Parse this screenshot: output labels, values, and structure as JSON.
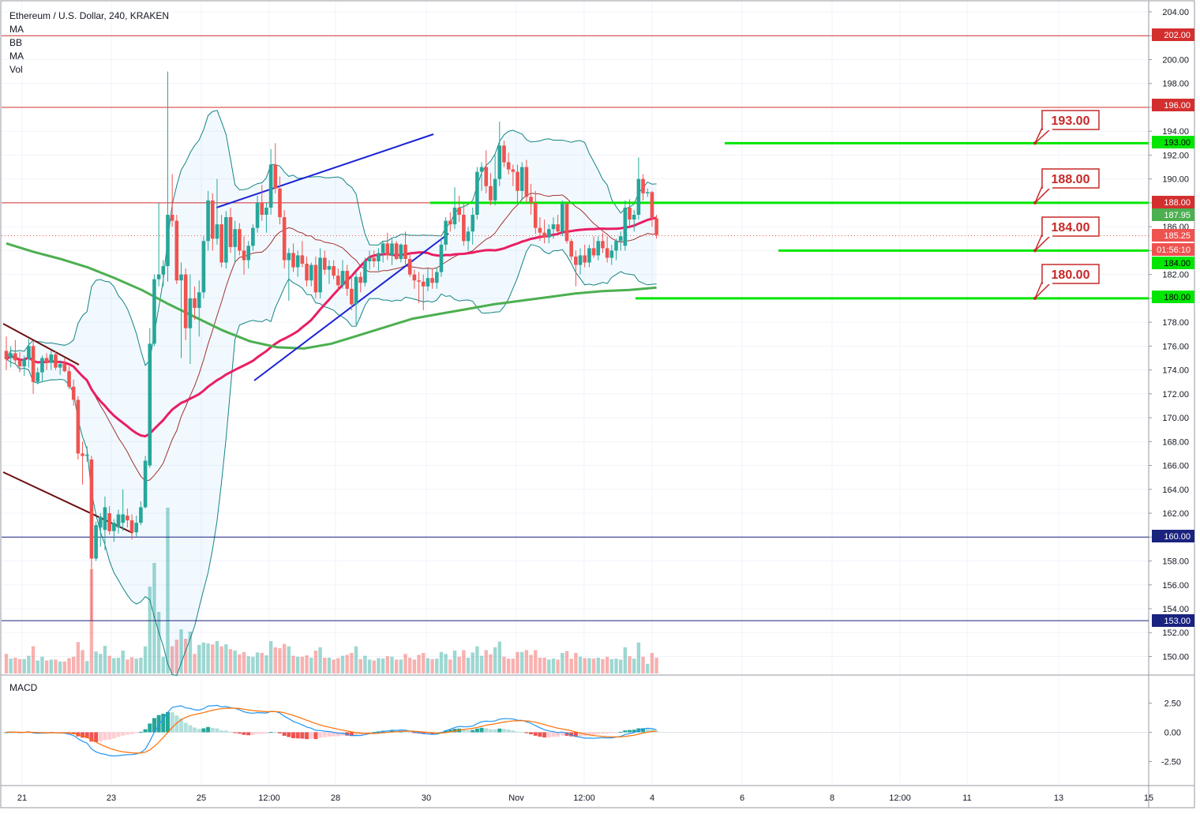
{
  "chart_data": {
    "type": "candlestick",
    "title": "Ethereum / U.S. Dollar, 240, KRAKEN",
    "indicators": [
      "MA",
      "BB",
      "MA",
      "Vol"
    ],
    "macd_label": "MACD",
    "y_range": [
      148,
      205
    ],
    "y_ticks": [
      "204.00",
      "202.00",
      "200.00",
      "198.00",
      "196.00",
      "194.00",
      "192.00",
      "190.00",
      "188.00",
      "186.00",
      "184.00",
      "182.00",
      "180.00",
      "178.00",
      "176.00",
      "174.00",
      "172.00",
      "170.00",
      "168.00",
      "166.00",
      "164.00",
      "162.00",
      "160.00",
      "158.00",
      "156.00",
      "154.00",
      "152.00",
      "150.00"
    ],
    "macd_ticks": [
      "2.50",
      "0.00",
      "-2.50"
    ],
    "x_labels": [
      "21",
      "23",
      "25",
      "12:00",
      "28",
      "30",
      "Nov",
      "12:00",
      "4",
      "6",
      "8",
      "12:00",
      "11",
      "13",
      "15"
    ],
    "price_tags": [
      {
        "label": "202.00",
        "value": 202,
        "kind": "red-line"
      },
      {
        "label": "196.00",
        "value": 196,
        "kind": "red-line"
      },
      {
        "label": "193.00",
        "value": 193,
        "kind": "green"
      },
      {
        "label": "188.00",
        "value": 188,
        "kind": "red-line"
      },
      {
        "label": "187.95",
        "value": 187.95,
        "kind": "green-light"
      },
      {
        "label": "185.25",
        "value": 185.25,
        "kind": "current"
      },
      {
        "label": "01:56:10",
        "value": 183.7,
        "kind": "countdown"
      },
      {
        "label": "184.00",
        "value": 184,
        "kind": "green"
      },
      {
        "label": "180.00",
        "value": 180,
        "kind": "green"
      },
      {
        "label": "160.00",
        "value": 160,
        "kind": "blue-line"
      },
      {
        "label": "153.00",
        "value": 153,
        "kind": "blue-line"
      }
    ],
    "callouts": [
      "193.00",
      "188.00",
      "184.00",
      "180.00"
    ],
    "horizontal_levels": {
      "red": [
        202,
        196,
        188
      ],
      "navy": [
        160,
        153
      ],
      "green": [
        193,
        188,
        184,
        180
      ]
    },
    "candles": [
      {
        "o": 175.6,
        "h": 176.8,
        "l": 174.0,
        "c": 174.9
      },
      {
        "o": 175.0,
        "h": 176.0,
        "l": 174.2,
        "c": 175.4
      },
      {
        "o": 175.4,
        "h": 176.5,
        "l": 174.5,
        "c": 174.8
      },
      {
        "o": 174.8,
        "h": 175.5,
        "l": 173.8,
        "c": 174.3
      },
      {
        "o": 174.3,
        "h": 175.2,
        "l": 173.5,
        "c": 174.9
      },
      {
        "o": 174.9,
        "h": 176.6,
        "l": 174.2,
        "c": 176.0
      },
      {
        "o": 176.0,
        "h": 176.4,
        "l": 172.0,
        "c": 173.0
      },
      {
        "o": 173.0,
        "h": 174.2,
        "l": 172.8,
        "c": 173.8
      },
      {
        "o": 173.8,
        "h": 175.2,
        "l": 173.0,
        "c": 175.0
      },
      {
        "o": 175.0,
        "h": 175.4,
        "l": 174.0,
        "c": 174.6
      },
      {
        "o": 174.6,
        "h": 175.6,
        "l": 174.0,
        "c": 175.3
      },
      {
        "o": 175.3,
        "h": 175.6,
        "l": 174.0,
        "c": 174.2
      },
      {
        "o": 174.2,
        "h": 174.8,
        "l": 173.6,
        "c": 174.5
      },
      {
        "o": 174.5,
        "h": 175.0,
        "l": 173.8,
        "c": 173.9
      },
      {
        "o": 173.9,
        "h": 174.3,
        "l": 172.4,
        "c": 172.6
      },
      {
        "o": 172.6,
        "h": 173.2,
        "l": 171.0,
        "c": 171.5
      },
      {
        "o": 171.5,
        "h": 171.8,
        "l": 166.5,
        "c": 167.0
      },
      {
        "o": 167.0,
        "h": 168.0,
        "l": 164.4,
        "c": 166.8
      },
      {
        "o": 166.8,
        "h": 167.6,
        "l": 166.3,
        "c": 166.9
      },
      {
        "o": 166.5,
        "h": 166.8,
        "l": 153.0,
        "c": 158.2
      },
      {
        "o": 158.2,
        "h": 161.3,
        "l": 158.0,
        "c": 161.0
      },
      {
        "o": 160.8,
        "h": 162.0,
        "l": 159.2,
        "c": 161.7
      },
      {
        "o": 160.6,
        "h": 163.4,
        "l": 158.9,
        "c": 162.5
      },
      {
        "o": 162.0,
        "h": 162.6,
        "l": 160.2,
        "c": 160.5
      },
      {
        "o": 160.5,
        "h": 161.5,
        "l": 159.6,
        "c": 161.2
      },
      {
        "o": 160.8,
        "h": 162.3,
        "l": 160.3,
        "c": 161.9
      },
      {
        "o": 161.2,
        "h": 164.0,
        "l": 160.5,
        "c": 161.9
      },
      {
        "o": 161.8,
        "h": 162.4,
        "l": 160.8,
        "c": 161.4
      },
      {
        "o": 161.4,
        "h": 161.9,
        "l": 159.8,
        "c": 160.4
      },
      {
        "o": 160.4,
        "h": 161.8,
        "l": 160.0,
        "c": 161.2
      },
      {
        "o": 161.2,
        "h": 163.0,
        "l": 161.0,
        "c": 162.5
      },
      {
        "o": 162.5,
        "h": 166.8,
        "l": 162.4,
        "c": 166.4
      },
      {
        "o": 166.0,
        "h": 177.5,
        "l": 165.8,
        "c": 176.2
      },
      {
        "o": 176.2,
        "h": 182.0,
        "l": 176.0,
        "c": 181.6
      },
      {
        "o": 181.6,
        "h": 188.0,
        "l": 181.0,
        "c": 182.0
      },
      {
        "o": 182.0,
        "h": 183.2,
        "l": 181.0,
        "c": 182.7
      },
      {
        "o": 182.7,
        "h": 199.0,
        "l": 181.4,
        "c": 187.0
      },
      {
        "o": 187.0,
        "h": 190.4,
        "l": 186.0,
        "c": 186.5
      },
      {
        "o": 186.5,
        "h": 187.0,
        "l": 181.2,
        "c": 181.5
      },
      {
        "o": 181.5,
        "h": 183.0,
        "l": 175.0,
        "c": 182.0
      },
      {
        "o": 182.0,
        "h": 182.5,
        "l": 176.5,
        "c": 177.5
      },
      {
        "o": 177.5,
        "h": 182.0,
        "l": 174.5,
        "c": 180.0
      },
      {
        "o": 180.0,
        "h": 181.0,
        "l": 178.2,
        "c": 179.2
      },
      {
        "o": 179.2,
        "h": 181.5,
        "l": 176.8,
        "c": 180.5
      },
      {
        "o": 180.5,
        "h": 185.2,
        "l": 180.0,
        "c": 184.8
      },
      {
        "o": 184.8,
        "h": 189.0,
        "l": 184.0,
        "c": 188.2
      },
      {
        "o": 188.2,
        "h": 188.8,
        "l": 184.0,
        "c": 185.0
      },
      {
        "o": 185.0,
        "h": 190.0,
        "l": 184.5,
        "c": 186.2
      },
      {
        "o": 186.2,
        "h": 187.0,
        "l": 182.6,
        "c": 183.0
      },
      {
        "o": 183.0,
        "h": 187.3,
        "l": 182.5,
        "c": 186.8
      },
      {
        "o": 186.8,
        "h": 187.6,
        "l": 183.8,
        "c": 184.3
      },
      {
        "o": 184.3,
        "h": 186.5,
        "l": 183.0,
        "c": 185.8
      },
      {
        "o": 185.8,
        "h": 186.3,
        "l": 183.6,
        "c": 184.0
      },
      {
        "o": 184.0,
        "h": 185.2,
        "l": 182.0,
        "c": 183.2
      },
      {
        "o": 183.2,
        "h": 184.8,
        "l": 182.5,
        "c": 184.4
      },
      {
        "o": 184.4,
        "h": 186.2,
        "l": 184.0,
        "c": 185.9
      },
      {
        "o": 185.9,
        "h": 188.6,
        "l": 185.5,
        "c": 188.0
      },
      {
        "o": 188.0,
        "h": 189.5,
        "l": 186.5,
        "c": 187.0
      },
      {
        "o": 187.0,
        "h": 188.0,
        "l": 185.5,
        "c": 187.6
      },
      {
        "o": 187.6,
        "h": 192.5,
        "l": 187.0,
        "c": 191.2
      },
      {
        "o": 191.2,
        "h": 193.0,
        "l": 188.8,
        "c": 189.2
      },
      {
        "o": 189.2,
        "h": 190.2,
        "l": 186.2,
        "c": 186.8
      },
      {
        "o": 186.8,
        "h": 187.4,
        "l": 182.5,
        "c": 183.2
      },
      {
        "o": 183.2,
        "h": 184.2,
        "l": 179.8,
        "c": 183.8
      },
      {
        "o": 183.8,
        "h": 184.6,
        "l": 182.2,
        "c": 182.6
      },
      {
        "o": 182.6,
        "h": 184.0,
        "l": 181.8,
        "c": 183.6
      },
      {
        "o": 183.6,
        "h": 184.8,
        "l": 182.6,
        "c": 182.9
      },
      {
        "o": 182.9,
        "h": 183.5,
        "l": 181.0,
        "c": 181.5
      },
      {
        "o": 181.5,
        "h": 183.0,
        "l": 181.0,
        "c": 182.8
      },
      {
        "o": 182.8,
        "h": 183.5,
        "l": 180.0,
        "c": 180.5
      },
      {
        "o": 180.5,
        "h": 184.2,
        "l": 180.0,
        "c": 183.4
      },
      {
        "o": 183.4,
        "h": 184.0,
        "l": 182.0,
        "c": 182.4
      },
      {
        "o": 182.4,
        "h": 183.2,
        "l": 181.2,
        "c": 182.7
      },
      {
        "o": 182.7,
        "h": 183.2,
        "l": 181.6,
        "c": 181.9
      },
      {
        "o": 181.9,
        "h": 182.5,
        "l": 180.6,
        "c": 181.1
      },
      {
        "o": 181.1,
        "h": 183.2,
        "l": 180.8,
        "c": 182.3
      },
      {
        "o": 182.3,
        "h": 182.8,
        "l": 180.2,
        "c": 180.8
      },
      {
        "o": 180.8,
        "h": 182.0,
        "l": 179.0,
        "c": 179.5
      },
      {
        "o": 179.5,
        "h": 182.2,
        "l": 177.8,
        "c": 181.8
      },
      {
        "o": 181.8,
        "h": 182.2,
        "l": 180.5,
        "c": 181.3
      },
      {
        "o": 181.3,
        "h": 183.4,
        "l": 181.0,
        "c": 183.1
      },
      {
        "o": 183.1,
        "h": 184.0,
        "l": 182.4,
        "c": 183.4
      },
      {
        "o": 183.4,
        "h": 184.0,
        "l": 182.6,
        "c": 183.1
      },
      {
        "o": 183.1,
        "h": 184.2,
        "l": 182.3,
        "c": 183.8
      },
      {
        "o": 183.8,
        "h": 184.8,
        "l": 183.0,
        "c": 184.6
      },
      {
        "o": 184.6,
        "h": 185.5,
        "l": 183.2,
        "c": 183.6
      },
      {
        "o": 183.6,
        "h": 185.0,
        "l": 182.8,
        "c": 184.6
      },
      {
        "o": 184.6,
        "h": 184.8,
        "l": 183.2,
        "c": 183.3
      },
      {
        "o": 183.3,
        "h": 184.6,
        "l": 183.0,
        "c": 184.5
      },
      {
        "o": 184.5,
        "h": 185.6,
        "l": 182.8,
        "c": 183.3
      },
      {
        "o": 183.3,
        "h": 183.8,
        "l": 181.8,
        "c": 182.0
      },
      {
        "o": 182.0,
        "h": 182.4,
        "l": 180.8,
        "c": 181.5
      },
      {
        "o": 181.5,
        "h": 182.2,
        "l": 179.6,
        "c": 181.4
      },
      {
        "o": 181.4,
        "h": 182.0,
        "l": 179.0,
        "c": 181.0
      },
      {
        "o": 181.0,
        "h": 182.5,
        "l": 180.6,
        "c": 181.7
      },
      {
        "o": 181.7,
        "h": 182.5,
        "l": 180.8,
        "c": 181.3
      },
      {
        "o": 181.3,
        "h": 182.6,
        "l": 180.8,
        "c": 182.2
      },
      {
        "o": 182.2,
        "h": 185.0,
        "l": 181.8,
        "c": 184.5
      },
      {
        "o": 184.5,
        "h": 186.8,
        "l": 184.0,
        "c": 186.5
      },
      {
        "o": 186.5,
        "h": 187.2,
        "l": 185.6,
        "c": 186.2
      },
      {
        "o": 186.2,
        "h": 189.3,
        "l": 185.8,
        "c": 187.6
      },
      {
        "o": 187.6,
        "h": 188.6,
        "l": 186.4,
        "c": 187.0
      },
      {
        "o": 187.0,
        "h": 188.0,
        "l": 184.4,
        "c": 184.8
      },
      {
        "o": 184.8,
        "h": 186.0,
        "l": 184.0,
        "c": 185.6
      },
      {
        "o": 185.6,
        "h": 187.6,
        "l": 184.5,
        "c": 187.0
      },
      {
        "o": 187.0,
        "h": 191.0,
        "l": 186.6,
        "c": 190.6
      },
      {
        "o": 190.6,
        "h": 191.4,
        "l": 189.0,
        "c": 191.0
      },
      {
        "o": 191.0,
        "h": 192.4,
        "l": 188.8,
        "c": 189.4
      },
      {
        "o": 189.4,
        "h": 190.5,
        "l": 187.8,
        "c": 188.2
      },
      {
        "o": 188.2,
        "h": 192.0,
        "l": 187.8,
        "c": 190.0
      },
      {
        "o": 190.0,
        "h": 194.8,
        "l": 189.4,
        "c": 192.8
      },
      {
        "o": 192.8,
        "h": 193.2,
        "l": 191.0,
        "c": 191.4
      },
      {
        "o": 191.4,
        "h": 192.2,
        "l": 190.4,
        "c": 190.8
      },
      {
        "o": 190.8,
        "h": 191.2,
        "l": 189.4,
        "c": 190.6
      },
      {
        "o": 190.6,
        "h": 191.2,
        "l": 188.0,
        "c": 189.0
      },
      {
        "o": 189.0,
        "h": 191.4,
        "l": 188.2,
        "c": 191.0
      },
      {
        "o": 191.0,
        "h": 191.6,
        "l": 188.0,
        "c": 188.5
      },
      {
        "o": 188.5,
        "h": 189.6,
        "l": 187.0,
        "c": 188.0
      },
      {
        "o": 188.0,
        "h": 189.0,
        "l": 185.4,
        "c": 185.9
      },
      {
        "o": 185.9,
        "h": 186.8,
        "l": 184.8,
        "c": 185.5
      },
      {
        "o": 185.5,
        "h": 186.6,
        "l": 184.6,
        "c": 185.1
      },
      {
        "o": 185.1,
        "h": 186.2,
        "l": 184.6,
        "c": 185.8
      },
      {
        "o": 185.8,
        "h": 186.8,
        "l": 185.0,
        "c": 186.2
      },
      {
        "o": 186.2,
        "h": 187.0,
        "l": 185.4,
        "c": 185.6
      },
      {
        "o": 185.6,
        "h": 188.2,
        "l": 185.2,
        "c": 187.9
      },
      {
        "o": 187.9,
        "h": 188.0,
        "l": 184.6,
        "c": 184.8
      },
      {
        "o": 184.8,
        "h": 185.0,
        "l": 183.2,
        "c": 183.5
      },
      {
        "o": 183.5,
        "h": 184.0,
        "l": 181.0,
        "c": 182.8
      },
      {
        "o": 182.8,
        "h": 184.2,
        "l": 182.0,
        "c": 183.6
      },
      {
        "o": 183.6,
        "h": 184.5,
        "l": 182.6,
        "c": 183.0
      },
      {
        "o": 183.0,
        "h": 184.5,
        "l": 182.6,
        "c": 184.2
      },
      {
        "o": 184.2,
        "h": 185.2,
        "l": 183.4,
        "c": 183.6
      },
      {
        "o": 183.6,
        "h": 185.2,
        "l": 183.2,
        "c": 184.8
      },
      {
        "o": 184.8,
        "h": 185.5,
        "l": 183.8,
        "c": 184.2
      },
      {
        "o": 184.2,
        "h": 185.2,
        "l": 183.0,
        "c": 183.4
      },
      {
        "o": 183.4,
        "h": 184.5,
        "l": 182.8,
        "c": 184.0
      },
      {
        "o": 184.0,
        "h": 185.0,
        "l": 183.2,
        "c": 184.8
      },
      {
        "o": 184.8,
        "h": 185.6,
        "l": 184.0,
        "c": 185.2
      },
      {
        "o": 184.4,
        "h": 188.2,
        "l": 184.0,
        "c": 187.6
      },
      {
        "o": 187.6,
        "h": 188.3,
        "l": 186.0,
        "c": 186.6
      },
      {
        "o": 186.6,
        "h": 187.4,
        "l": 185.6,
        "c": 187.0
      },
      {
        "o": 187.0,
        "h": 191.8,
        "l": 186.6,
        "c": 190.0
      },
      {
        "o": 190.0,
        "h": 190.4,
        "l": 188.2,
        "c": 188.8
      },
      {
        "o": 188.8,
        "h": 189.2,
        "l": 188.5,
        "c": 188.9
      },
      {
        "o": 188.9,
        "h": 189.0,
        "l": 186.0,
        "c": 186.7
      },
      {
        "o": 186.7,
        "h": 187.0,
        "l": 185.0,
        "c": 185.3
      }
    ]
  }
}
